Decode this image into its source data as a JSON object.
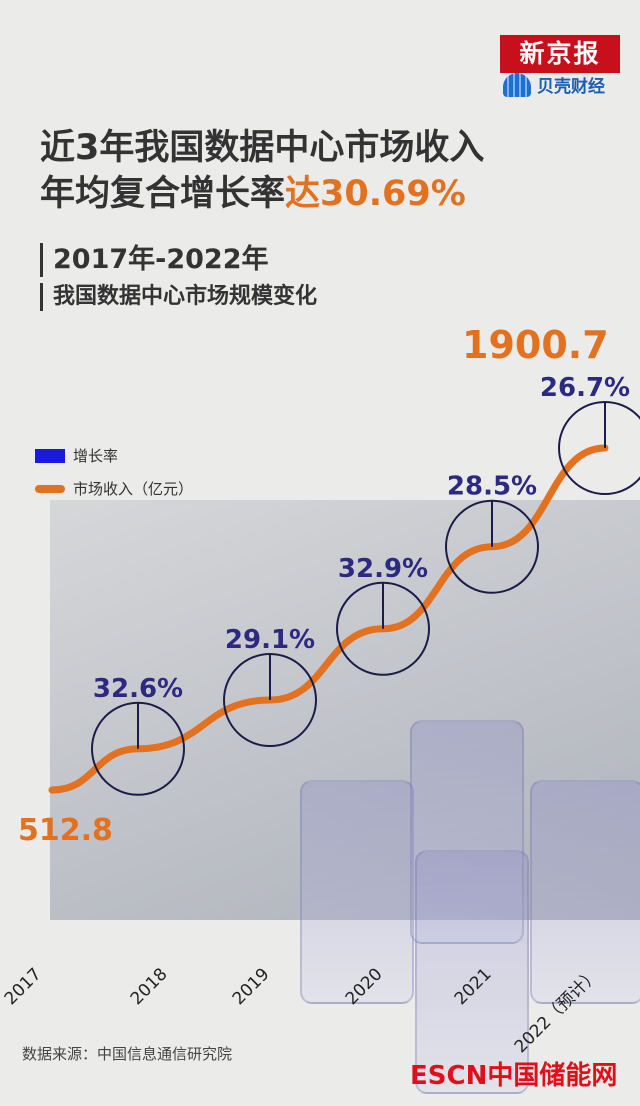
{
  "logos": {
    "xinjingbao": "新京报",
    "beike": "贝壳财经",
    "escn": "ESCN中国储能网"
  },
  "header": {
    "title_line1": "近3年我国数据中心市场收入",
    "title_line2_prefix": "年均复合增长率",
    "title_line2_highlight": "达30.69%",
    "subtitle_line1": "2017年-2022年",
    "subtitle_line2": "我国数据中心市场规模变化"
  },
  "footer": {
    "source": "数据来源：中国信息通信研究院"
  },
  "colors": {
    "line": "#e27120",
    "rate": "#2b2a80",
    "accent": "#e27120"
  },
  "chart_data": {
    "type": "line",
    "title": "2017年-2022年我国数据中心市场规模变化",
    "categories": [
      "2017",
      "2018",
      "2019",
      "2020",
      "2021",
      "2022（预计）"
    ],
    "legend": [
      "增长率",
      "市场收入（亿元）"
    ],
    "series": [
      {
        "name": "市场收入（亿元）",
        "values": [
          512.8,
          680,
          878,
          1167,
          1500,
          1900.7
        ],
        "labels": [
          "512.8",
          "",
          "",
          "",
          "",
          "1900.7"
        ]
      },
      {
        "name": "增长率",
        "values": [
          null,
          32.6,
          29.1,
          32.9,
          28.5,
          26.7
        ],
        "labels": [
          "",
          "32.6%",
          "29.1%",
          "32.9%",
          "28.5%",
          "26.7%"
        ]
      }
    ],
    "ylim": [
      512.8,
      1900.7
    ],
    "legend_position": "left"
  }
}
